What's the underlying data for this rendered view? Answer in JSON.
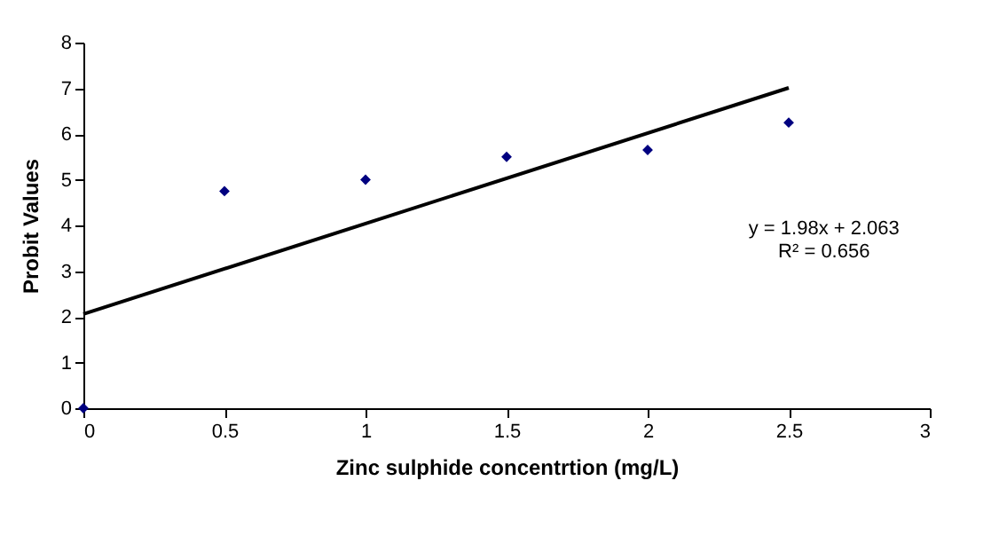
{
  "chart_data": {
    "type": "scatter",
    "xlabel": "Zinc sulphide concentrtion (mg/L)",
    "ylabel": "Probit Values",
    "series": [
      {
        "color": "#000080",
        "marker": "diamond",
        "x": [
          0,
          0.5,
          1,
          1.5,
          2,
          2.5
        ],
        "values": [
          0,
          4.75,
          5.0,
          5.5,
          5.65,
          6.25
        ]
      },
      {
        "type": "line",
        "color": "#000000",
        "x": [
          0,
          2.5
        ],
        "values": [
          2.06,
          7.01
        ]
      }
    ],
    "xlim": [
      0,
      3
    ],
    "xticks": [
      0,
      0.5,
      1,
      1.5,
      2,
      2.5,
      3
    ],
    "ylim": [
      0,
      8
    ],
    "yticks": [
      0,
      1,
      2,
      3,
      4,
      5,
      6,
      7,
      8
    ],
    "annotations": [
      "y = 1.98x + 2.063",
      "R² = 0.656"
    ],
    "grid": false
  }
}
